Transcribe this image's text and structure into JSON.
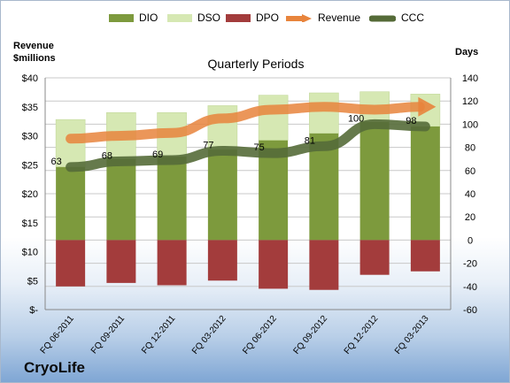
{
  "legend": {
    "dio": "DIO",
    "dso": "DSO",
    "dpo": "DPO",
    "revenue": "Revenue",
    "ccc": "CCC"
  },
  "left_axis_title": [
    "Revenue",
    "$millions"
  ],
  "right_axis_title": "Days",
  "subtitle": "Quarterly Periods",
  "company": "CryoLife",
  "colors": {
    "dio": "#7d9a3d",
    "dso": "#d6e8b3",
    "dpo": "#a33c3c",
    "revenue": "#e8843c",
    "ccc": "#556b38",
    "grid": "#c8c8c8"
  },
  "chart_data": {
    "type": "bar",
    "categories": [
      "FQ 06-2011",
      "FQ 09-2011",
      "FQ 12-2011",
      "FQ 03-2012",
      "FQ 06-2012",
      "FQ 09-2012",
      "FQ 12-2012",
      "FQ 03-2013"
    ],
    "series": [
      {
        "name": "DIO",
        "axis": "days",
        "values": [
          63,
          70,
          72,
          78,
          86,
          92,
          102,
          98
        ]
      },
      {
        "name": "DSO",
        "axis": "days",
        "values": [
          41,
          40,
          38,
          38,
          39,
          35,
          26,
          28
        ]
      },
      {
        "name": "DPO",
        "axis": "days",
        "values": [
          -40,
          -37,
          -39,
          -35,
          -42,
          -43,
          -30,
          -27
        ]
      },
      {
        "name": "Revenue",
        "axis": "revenue",
        "values": [
          29.5,
          30.0,
          30.5,
          33.0,
          34.5,
          35.0,
          34.5,
          35.0
        ]
      },
      {
        "name": "CCC",
        "axis": "days",
        "values": [
          63,
          68,
          69,
          77,
          75,
          81,
          100,
          98
        ]
      }
    ],
    "ccc_labels": [
      "63",
      "68",
      "69",
      "77",
      "75",
      "81",
      "100",
      "98"
    ],
    "left_axis": {
      "title": "Revenue $millions",
      "range": [
        0,
        40
      ],
      "ticks": [
        "$-",
        "$5",
        "$10",
        "$15",
        "$20",
        "$25",
        "$30",
        "$35",
        "$40"
      ]
    },
    "right_axis": {
      "title": "Days",
      "range": [
        -60,
        140
      ],
      "ticks": [
        "-60",
        "-40",
        "-20",
        "0",
        "20",
        "40",
        "60",
        "80",
        "100",
        "120",
        "140"
      ]
    },
    "xlabel": "Quarterly Periods",
    "grid": true,
    "legend_position": "top"
  }
}
